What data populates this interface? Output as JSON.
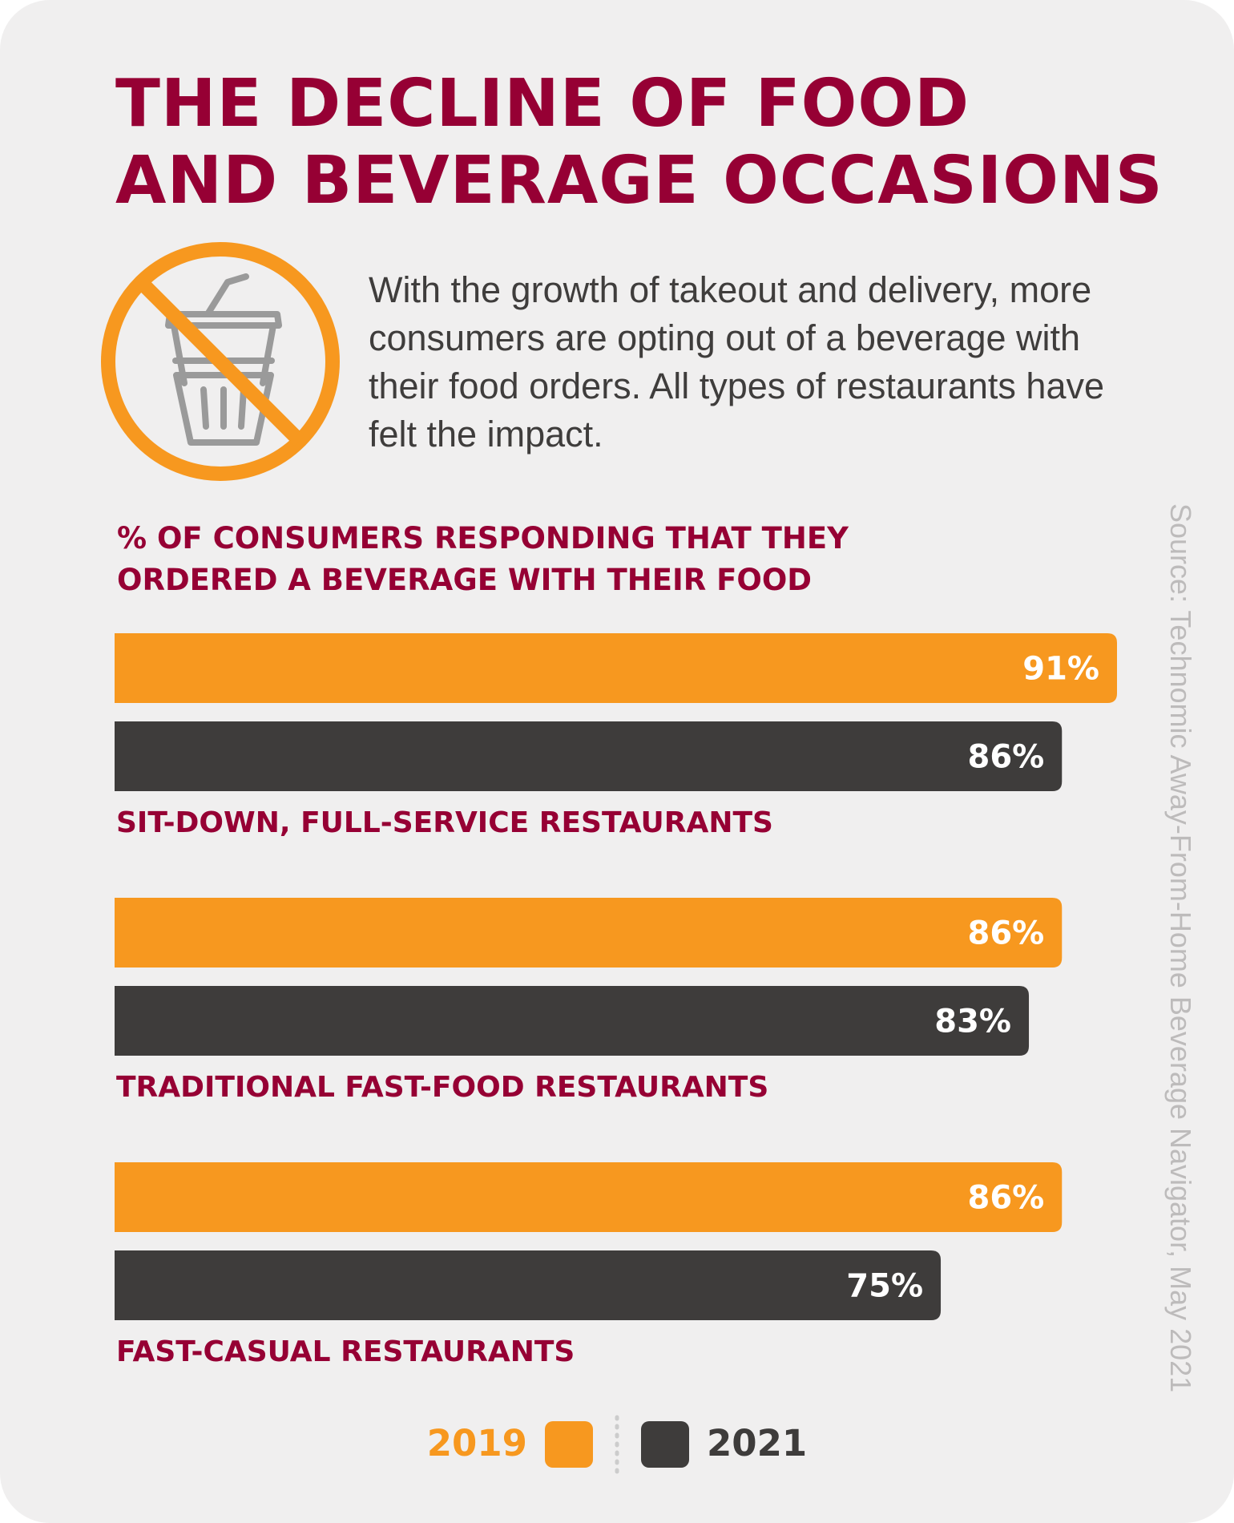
{
  "header": {
    "title_line1": "THE DECLINE OF FOOD",
    "title_line2": "AND BEVERAGE OCCASIONS",
    "intro": "With the growth of takeout and delivery, more consumers are opting out of a beverage with their food orders. All types of restaurants have felt the impact."
  },
  "icons": {
    "hero": "no-beverage-icon"
  },
  "source": "Source: Technomic Away-From-Home Beverage Navigator, May 2021",
  "colors": {
    "title": "#960034",
    "series_2019": "#f7981f",
    "series_2021": "#3e3c3b",
    "background": "#f0efef"
  },
  "chart_data": {
    "type": "bar",
    "orientation": "horizontal",
    "title_line1": "% OF CONSUMERS RESPONDING THAT THEY",
    "title_line2": "ORDERED A BEVERAGE WITH THEIR FOOD",
    "categories": [
      "SIT-DOWN, FULL-SERVICE RESTAURANTS",
      "TRADITIONAL FAST-FOOD RESTAURANTS",
      "FAST-CASUAL RESTAURANTS"
    ],
    "series": [
      {
        "name": "2019",
        "values": [
          91,
          86,
          86
        ],
        "labels": [
          "91%",
          "86%",
          "86%"
        ]
      },
      {
        "name": "2021",
        "values": [
          86,
          83,
          75
        ],
        "labels": [
          "86%",
          "83%",
          "75%"
        ]
      }
    ],
    "unit": "%",
    "legend_position": "bottom-center",
    "grid": false
  }
}
